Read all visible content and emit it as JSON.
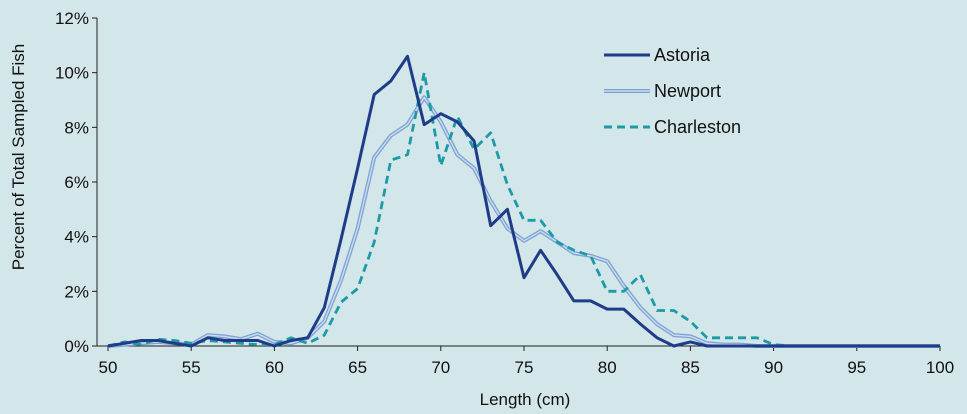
{
  "chart_data": {
    "type": "line",
    "title": "",
    "xlabel": "Length (cm)",
    "ylabel": "Percent of Total Sampled Fish",
    "xlim": [
      50,
      100
    ],
    "ylim": [
      0,
      12
    ],
    "xticks": [
      50,
      55,
      60,
      65,
      70,
      75,
      80,
      85,
      90,
      95,
      100
    ],
    "xtick_labels": [
      "50",
      "55",
      "60",
      "65",
      "70",
      "75",
      "80",
      "85",
      "90",
      "95",
      "100"
    ],
    "yticks": [
      0,
      2,
      4,
      6,
      8,
      10,
      12
    ],
    "ytick_labels": [
      "0%",
      "2%",
      "4%",
      "6%",
      "8%",
      "10%",
      "12%"
    ],
    "grid": false,
    "legend_position": "top-right",
    "x": [
      50,
      51,
      52,
      53,
      54,
      55,
      56,
      57,
      58,
      59,
      60,
      61,
      62,
      63,
      64,
      65,
      66,
      67,
      68,
      69,
      70,
      71,
      72,
      73,
      74,
      75,
      76,
      77,
      78,
      79,
      80,
      81,
      82,
      83,
      84,
      85,
      86,
      87,
      88,
      89,
      90,
      91,
      92,
      93,
      94,
      95,
      96,
      97,
      98,
      99,
      100
    ],
    "series": [
      {
        "name": "Astoria",
        "color": "#1f3c88",
        "style": "solid",
        "values": [
          0,
          0.1,
          0.2,
          0.2,
          0.1,
          0,
          0.3,
          0.2,
          0.2,
          0.2,
          0,
          0.2,
          0.3,
          1.4,
          3.9,
          6.5,
          9.2,
          9.7,
          10.6,
          8.1,
          8.5,
          8.2,
          7.5,
          4.4,
          5.0,
          2.5,
          3.5,
          2.6,
          1.65,
          1.65,
          1.35,
          1.35,
          0.8,
          0.3,
          0,
          0.15,
          0,
          0,
          0,
          0,
          0,
          0,
          0,
          0,
          0,
          0,
          0,
          0,
          0,
          0,
          0
        ]
      },
      {
        "name": "Newport",
        "color": "#8fb2dc",
        "style": "solid",
        "values": [
          0,
          0.05,
          0.1,
          0.15,
          0.1,
          0.05,
          0.4,
          0.35,
          0.25,
          0.45,
          0.15,
          0.1,
          0.3,
          0.9,
          2.4,
          4.3,
          6.9,
          7.7,
          8.1,
          9.1,
          8.2,
          7.0,
          6.5,
          5.3,
          4.3,
          3.85,
          4.2,
          3.8,
          3.4,
          3.3,
          3.1,
          2.2,
          1.4,
          0.8,
          0.4,
          0.35,
          0.1,
          0.05,
          0.05,
          0,
          0,
          0,
          0,
          0,
          0,
          0,
          0,
          0,
          0,
          0,
          0
        ]
      },
      {
        "name": "Charleston",
        "color": "#1c9aa6",
        "style": "dashed",
        "values": [
          0,
          0.15,
          0.05,
          0.25,
          0.2,
          0.1,
          0.2,
          0.15,
          0.1,
          0.05,
          0.05,
          0.3,
          0.1,
          0.4,
          1.6,
          2.1,
          3.8,
          6.8,
          7.0,
          10.0,
          6.6,
          8.4,
          7.2,
          7.8,
          5.9,
          4.6,
          4.6,
          3.8,
          3.5,
          3.3,
          2.0,
          2.0,
          2.6,
          1.3,
          1.3,
          0.9,
          0.3,
          0.3,
          0.3,
          0.3,
          0.05,
          0,
          0,
          0,
          0,
          0,
          0,
          0,
          0,
          0,
          0
        ]
      }
    ]
  }
}
